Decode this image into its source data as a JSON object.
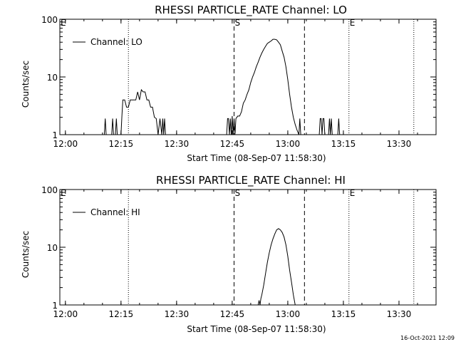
{
  "chart_data": [
    {
      "type": "line",
      "title": "RHESSI PARTICLE_RATE Channel: LO",
      "xlabel": "Start Time (08-Sep-07 11:58:30)",
      "ylabel": "Counts/sec",
      "y_scale": "log",
      "ylim": [
        1,
        100
      ],
      "xlim": [
        "11:58:30",
        "13:40:00"
      ],
      "x_tick_labels": [
        "12:00",
        "12:15",
        "12:30",
        "12:45",
        "13:00",
        "13:15",
        "13:30"
      ],
      "y_tick_labels": [
        "1",
        "10",
        "100"
      ],
      "legend": "top-left",
      "series": [
        {
          "name": "Channel: LO",
          "x": [
            "11:58:30",
            "12:10:30",
            "12:10:45",
            "12:11:00",
            "12:12:30",
            "12:12:45",
            "12:13:00",
            "12:13:30",
            "12:13:45",
            "12:14:00",
            "12:15:00",
            "12:15:15",
            "12:15:30",
            "12:16:00",
            "12:16:30",
            "12:17:00",
            "12:17:30",
            "12:18:00",
            "12:18:30",
            "12:19:00",
            "12:19:30",
            "12:20:00",
            "12:20:30",
            "12:21:00",
            "12:21:30",
            "12:22:00",
            "12:22:30",
            "12:23:00",
            "12:23:30",
            "12:24:00",
            "12:24:30",
            "12:25:00",
            "12:25:30",
            "12:26:00",
            "12:26:15",
            "12:26:30",
            "12:26:45",
            "12:27:00",
            "12:27:30",
            "12:43:30",
            "12:43:45",
            "12:44:00",
            "12:44:15",
            "12:44:30",
            "12:44:45",
            "12:45:00",
            "12:45:15",
            "12:45:30",
            "12:45:45",
            "12:46:00",
            "12:46:30",
            "12:47:00",
            "12:47:30",
            "12:48:00",
            "12:48:30",
            "12:49:00",
            "12:49:30",
            "12:50:00",
            "12:50:30",
            "12:51:00",
            "12:51:30",
            "12:52:00",
            "12:52:30",
            "12:53:00",
            "12:53:30",
            "12:54:00",
            "12:54:30",
            "12:55:00",
            "12:55:30",
            "12:56:00",
            "12:56:30",
            "12:57:00",
            "12:57:30",
            "12:58:00",
            "12:58:30",
            "12:59:00",
            "12:59:30",
            "13:00:00",
            "13:00:30",
            "13:01:00",
            "13:01:30",
            "13:02:00",
            "13:02:30",
            "13:03:00",
            "13:03:15",
            "13:03:30",
            "13:08:30",
            "13:08:45",
            "13:09:00",
            "13:09:15",
            "13:09:30",
            "13:09:45",
            "13:10:00",
            "13:11:00",
            "13:11:15",
            "13:11:30",
            "13:11:45",
            "13:12:00",
            "13:13:30",
            "13:13:45",
            "13:14:00",
            "13:40:00"
          ],
          "values": [
            1,
            1,
            1.9,
            1,
            1,
            1.9,
            1,
            1,
            1.9,
            1,
            1,
            2.1,
            4,
            4,
            3,
            3,
            4,
            4,
            4,
            4,
            5.5,
            4,
            6,
            5.5,
            5.5,
            4,
            4,
            3,
            3,
            2,
            1.9,
            1,
            1.9,
            1,
            1.9,
            1,
            1.9,
            1,
            1,
            1,
            1.9,
            1.9,
            1,
            1.9,
            1,
            2.1,
            1,
            1.9,
            1,
            1.9,
            2.1,
            2.1,
            2.5,
            3.5,
            4,
            5,
            6,
            8,
            10,
            12,
            15,
            18,
            22,
            26,
            30,
            34,
            38,
            40,
            42,
            45,
            45,
            44,
            40,
            36,
            28,
            22,
            15,
            9,
            5,
            3,
            2,
            1.5,
            1.2,
            1,
            1.9,
            1,
            1,
            1.9,
            1.9,
            1,
            1.9,
            1.9,
            1,
            1,
            1.9,
            1,
            1.9,
            1,
            1,
            1.9,
            1,
            1
          ]
        }
      ],
      "markers": [
        {
          "type": "dotted",
          "x": "11:58:30",
          "label": "E"
        },
        {
          "type": "dotted",
          "x": "12:17:00",
          "label": ""
        },
        {
          "type": "dashed",
          "x": "12:45:30",
          "label": "S"
        },
        {
          "type": "dashed",
          "x": "13:04:30",
          "label": ""
        },
        {
          "type": "dotted",
          "x": "13:16:30",
          "label": "E"
        },
        {
          "type": "dotted",
          "x": "13:34:00",
          "label": ""
        }
      ]
    },
    {
      "type": "line",
      "title": "RHESSI PARTICLE_RATE Channel: HI",
      "xlabel": "Start Time (08-Sep-07 11:58:30)",
      "ylabel": "Counts/sec",
      "y_scale": "log",
      "ylim": [
        1,
        100
      ],
      "xlim": [
        "11:58:30",
        "13:40:00"
      ],
      "x_tick_labels": [
        "12:00",
        "12:15",
        "12:30",
        "12:45",
        "13:00",
        "13:15",
        "13:30"
      ],
      "y_tick_labels": [
        "1",
        "10",
        "100"
      ],
      "legend": "top-left",
      "series": [
        {
          "name": "Channel: HI",
          "x": [
            "12:52:00",
            "12:52:15",
            "12:52:30",
            "12:52:45",
            "12:53:00",
            "12:53:30",
            "12:54:00",
            "12:54:30",
            "12:55:00",
            "12:55:30",
            "12:56:00",
            "12:56:30",
            "12:57:00",
            "12:57:30",
            "12:58:00",
            "12:58:30",
            "12:59:00",
            "12:59:30",
            "13:00:00",
            "13:00:30",
            "13:01:00",
            "13:01:30",
            "13:02:00"
          ],
          "values": [
            1,
            1.2,
            1,
            1.3,
            1.5,
            2.2,
            3.5,
            5.5,
            8,
            11,
            14,
            17,
            20,
            21,
            20,
            18,
            15,
            11,
            7,
            4,
            2.5,
            1.5,
            1
          ]
        }
      ],
      "markers": [
        {
          "type": "dotted",
          "x": "11:58:30",
          "label": "E"
        },
        {
          "type": "dotted",
          "x": "12:17:00",
          "label": ""
        },
        {
          "type": "dashed",
          "x": "12:45:30",
          "label": "S"
        },
        {
          "type": "dashed",
          "x": "13:04:30",
          "label": ""
        },
        {
          "type": "dotted",
          "x": "13:16:30",
          "label": "E"
        },
        {
          "type": "dotted",
          "x": "13:34:00",
          "label": ""
        }
      ]
    }
  ],
  "footer": {
    "timestamp": "16-Oct-2021 12:09"
  }
}
